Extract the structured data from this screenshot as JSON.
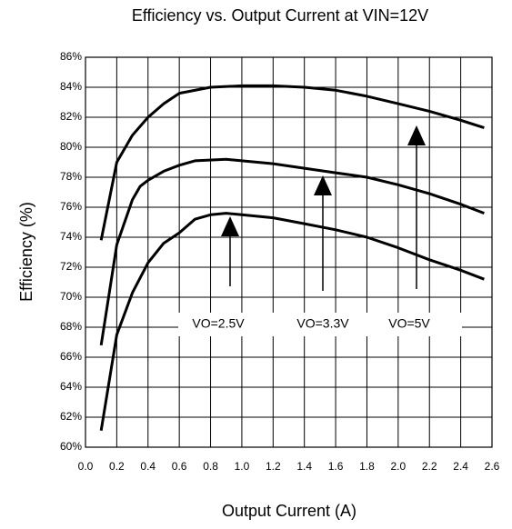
{
  "chart_data": {
    "type": "line",
    "title": "Efficiency vs. Output Current at VIN=12V",
    "x_label": "Output Current (A)",
    "y_label": "Efficiency (%)",
    "xlim": [
      0,
      2.6
    ],
    "ylim": [
      60,
      86
    ],
    "xticks": [
      {
        "value": 0,
        "label": "0.0"
      },
      0.2,
      0.4,
      0.6,
      0.8,
      {
        "value": 1,
        "label": "1.0"
      },
      1.2,
      1.4,
      1.6,
      1.8,
      {
        "value": 2,
        "label": "2.0"
      },
      2.2,
      2.4,
      2.6
    ],
    "yticks": [
      {
        "value": 60,
        "label": "60%"
      },
      {
        "value": 62,
        "label": "62%"
      },
      {
        "value": 64,
        "label": "64%"
      },
      {
        "value": 66,
        "label": "66%"
      },
      {
        "value": 68,
        "label": "68%"
      },
      {
        "value": 70,
        "label": "70%"
      },
      {
        "value": 72,
        "label": "72%"
      },
      {
        "value": 74,
        "label": "74%"
      },
      {
        "value": 76,
        "label": "76%"
      },
      {
        "value": 78,
        "label": "78%"
      },
      {
        "value": 80,
        "label": "80%"
      },
      {
        "value": 82,
        "label": "82%"
      },
      {
        "value": 84,
        "label": "84%"
      },
      {
        "value": 86,
        "label": "86%"
      }
    ],
    "grid": true,
    "series": [
      {
        "name": "VO=2.5V",
        "color": "#000000",
        "x": [
          0.1,
          0.2,
          0.3,
          0.4,
          0.5,
          0.6,
          0.7,
          0.8,
          0.9,
          1.0,
          1.2,
          1.4,
          1.6,
          1.8,
          2.0,
          2.2,
          2.4,
          2.55
        ],
        "values": [
          61.1,
          67.5,
          70.3,
          72.3,
          73.6,
          74.3,
          75.2,
          75.5,
          75.6,
          75.5,
          75.3,
          74.9,
          74.5,
          74.0,
          73.3,
          72.5,
          71.8,
          71.2
        ]
      },
      {
        "name": "VO=3.3V",
        "color": "#000000",
        "x": [
          0.1,
          0.2,
          0.3,
          0.35,
          0.4,
          0.5,
          0.6,
          0.7,
          0.9,
          1.0,
          1.2,
          1.4,
          1.6,
          1.8,
          2.0,
          2.2,
          2.4,
          2.55
        ],
        "values": [
          66.8,
          73.5,
          76.5,
          77.4,
          77.8,
          78.4,
          78.8,
          79.1,
          79.2,
          79.1,
          78.9,
          78.6,
          78.3,
          78.0,
          77.5,
          76.9,
          76.2,
          75.6
        ]
      },
      {
        "name": "VO=5V",
        "color": "#000000",
        "x": [
          0.1,
          0.2,
          0.3,
          0.4,
          0.5,
          0.6,
          0.8,
          1.0,
          1.2,
          1.4,
          1.6,
          1.8,
          2.0,
          2.2,
          2.4,
          2.55
        ],
        "values": [
          73.8,
          79.0,
          80.8,
          82.0,
          82.9,
          83.6,
          84.0,
          84.1,
          84.1,
          84.0,
          83.8,
          83.4,
          82.9,
          82.4,
          81.8,
          81.3
        ]
      }
    ]
  }
}
